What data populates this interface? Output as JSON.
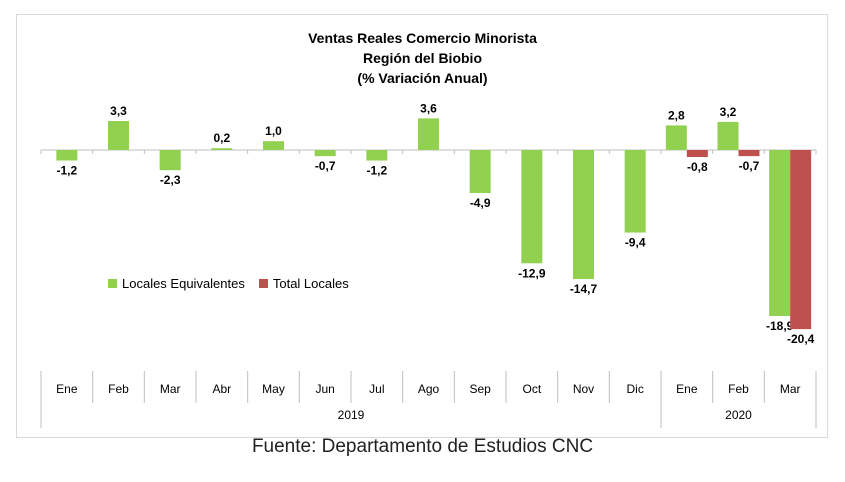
{
  "chart_data": {
    "type": "bar",
    "title": "Ventas Reales Comercio Minorista",
    "subtitle": "Región del Biobio",
    "subtitle2": "(% Variación Anual)",
    "categories": [
      "Ene",
      "Feb",
      "Mar",
      "Abr",
      "May",
      "Jun",
      "Jul",
      "Ago",
      "Sep",
      "Oct",
      "Nov",
      "Dic",
      "Ene",
      "Feb",
      "Mar"
    ],
    "groups": [
      {
        "label": "2019",
        "count": 12
      },
      {
        "label": "2020",
        "count": 3
      }
    ],
    "series": [
      {
        "name": "Locales Equivalentes",
        "color": "#92d050",
        "values": [
          -1.2,
          3.3,
          -2.3,
          0.2,
          1.0,
          -0.7,
          -1.2,
          3.6,
          -4.9,
          -12.9,
          -14.7,
          -9.4,
          2.8,
          3.2,
          -18.9
        ],
        "labels": [
          "-1,2",
          "3,3",
          "-2,3",
          "0,2",
          "1,0",
          "-0,7",
          "-1,2",
          "3,6",
          "-4,9",
          "-12,9",
          "-14,7",
          "-9,4",
          "2,8",
          "3,2",
          "-18,9"
        ]
      },
      {
        "name": "Total Locales",
        "color": "#c0504d",
        "values": [
          null,
          null,
          null,
          null,
          null,
          null,
          null,
          null,
          null,
          null,
          null,
          null,
          -0.8,
          -0.7,
          -20.4
        ],
        "labels": [
          "",
          "",
          "",
          "",
          "",
          "",
          "",
          "",
          "",
          "",
          "",
          "",
          "-0,8",
          "-0,7",
          "-20,4"
        ]
      }
    ],
    "legend_position": "center-left",
    "grid": false
  },
  "source": "Fuente: Departamento de Estudios CNC"
}
